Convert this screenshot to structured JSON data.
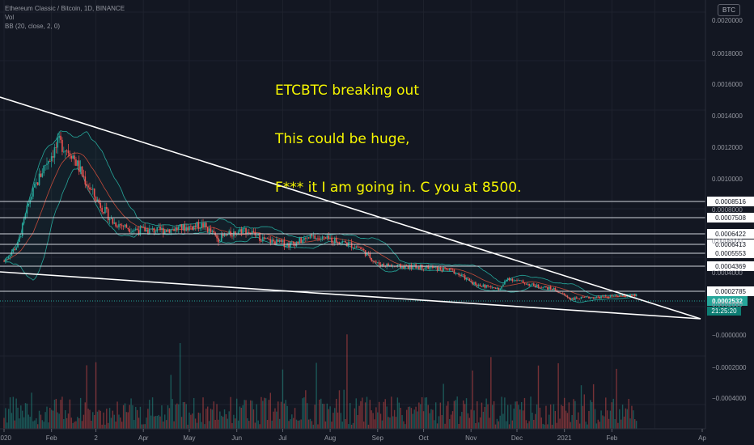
{
  "header": {
    "symbol_line": "Ethereum Classic / Bitcoin, 1D, BINANCE",
    "vol_label": "Vol",
    "bb_label": "BB (20, close, 2, 0)",
    "currency_badge": "BTC"
  },
  "annotation": {
    "lines": [
      "ETCBTC breaking out",
      "This could be huge,",
      "F*** it I am going in. C you at 8500."
    ]
  },
  "chart_data": {
    "type": "candlestick",
    "price_axis": {
      "ticks": [
        "0.0020000",
        "0.0018000",
        "0.0016000",
        "0.0014000",
        "0.0012000",
        "0.0010000",
        "0.0008000",
        "0.0006000",
        "0.0004000",
        "0.0002000",
        "0.0000000",
        "−0.0000000",
        "−0.0002000",
        "−0.0004000"
      ],
      "tick_values": [
        0.002,
        0.0018,
        0.0016,
        0.0014,
        0.0012,
        0.001,
        0.0008,
        0.0006,
        0.0004,
        0.0002,
        0.0,
        -1e-07,
        -0.0002,
        -0.0004
      ]
    },
    "time_axis": {
      "labels": [
        "2020",
        "Feb",
        "2",
        "Apr",
        "May",
        "Jun",
        "Jul",
        "Aug",
        "Sep",
        "Oct",
        "Nov",
        "Dec",
        "2021",
        "Feb",
        "Ap"
      ]
    },
    "horizontal_levels": [
      {
        "label": "0.0008516",
        "value": 0.0008516
      },
      {
        "label": "0.0007508",
        "value": 0.0007508
      },
      {
        "label": "0.0006422",
        "value": 0.0006422
      },
      {
        "label": "0.0006413",
        "value": 0.0006413
      },
      {
        "label": "0.0005553",
        "value": 0.0005553
      },
      {
        "label": "0.0004369",
        "value": 0.0004369
      },
      {
        "label": "0.0002785",
        "value": 0.0002785
      }
    ],
    "current_price": {
      "label": "0.0002532",
      "value": 0.0002532,
      "color": "#26a69a"
    },
    "countdown": "21:25:20",
    "trendlines": [
      {
        "name": "upper-wedge",
        "from": {
          "date": "2019-12-01",
          "price": 0.00153
        },
        "to": {
          "date": "2021-04-01",
          "price": 5e-05
        }
      },
      {
        "name": "lower-wedge",
        "from": {
          "date": "2019-12-01",
          "price": 0.00043
        },
        "to": {
          "date": "2021-04-01",
          "price": 5e-05
        }
      }
    ],
    "price_path": [
      {
        "date": "2020-01-01",
        "price": 0.0005
      },
      {
        "date": "2020-01-10",
        "price": 0.00062
      },
      {
        "date": "2020-01-18",
        "price": 0.00095
      },
      {
        "date": "2020-01-28",
        "price": 0.0012
      },
      {
        "date": "2020-02-06",
        "price": 0.00135
      },
      {
        "date": "2020-02-14",
        "price": 0.00128
      },
      {
        "date": "2020-02-22",
        "price": 0.0011
      },
      {
        "date": "2020-03-01",
        "price": 0.00095
      },
      {
        "date": "2020-03-12",
        "price": 0.00078
      },
      {
        "date": "2020-03-25",
        "price": 0.00073
      },
      {
        "date": "2020-04-10",
        "price": 0.00072
      },
      {
        "date": "2020-04-28",
        "price": 0.00074
      },
      {
        "date": "2020-05-10",
        "price": 0.00076
      },
      {
        "date": "2020-05-20",
        "price": 0.00066
      },
      {
        "date": "2020-06-05",
        "price": 0.00073
      },
      {
        "date": "2020-06-20",
        "price": 0.00065
      },
      {
        "date": "2020-07-05",
        "price": 0.00062
      },
      {
        "date": "2020-07-20",
        "price": 0.00067
      },
      {
        "date": "2020-08-05",
        "price": 0.00065
      },
      {
        "date": "2020-08-20",
        "price": 0.0006
      },
      {
        "date": "2020-09-01",
        "price": 0.00048
      },
      {
        "date": "2020-09-15",
        "price": 0.00046
      },
      {
        "date": "2020-10-01",
        "price": 0.00046
      },
      {
        "date": "2020-10-20",
        "price": 0.00043
      },
      {
        "date": "2020-11-05",
        "price": 0.00033
      },
      {
        "date": "2020-11-20",
        "price": 0.0003
      },
      {
        "date": "2020-11-25",
        "price": 0.00038
      },
      {
        "date": "2020-12-10",
        "price": 0.00033
      },
      {
        "date": "2020-12-25",
        "price": 0.0003
      },
      {
        "date": "2021-01-05",
        "price": 0.00023
      },
      {
        "date": "2021-01-20",
        "price": 0.00024
      },
      {
        "date": "2021-02-05",
        "price": 0.00025
      },
      {
        "date": "2021-02-17",
        "price": 0.000253
      }
    ],
    "colors": {
      "up": "#26a69a",
      "down": "#ef5350",
      "background": "#131722",
      "lines": "#ffffff",
      "annotation": "#f7f700"
    }
  }
}
